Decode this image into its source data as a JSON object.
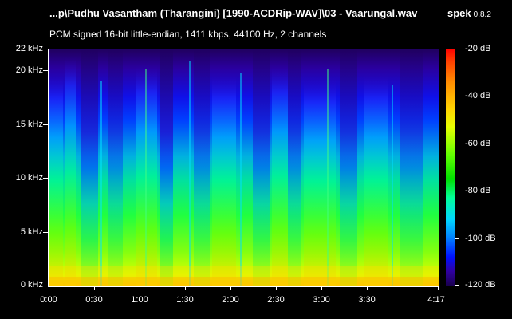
{
  "window": {
    "title": "...p\\Pudhu Vasantham (Tharangini) [1990-ACDRip-WAV]\\03 - Vaarungal.wav",
    "app_name": "spek",
    "app_version": "0.8.2",
    "format_info": "PCM signed 16-bit little-endian, 1411 kbps, 44100 Hz, 2 channels"
  },
  "frequency_axis": {
    "labels": [
      "22 kHz",
      "20 kHz",
      "15 kHz",
      "10 kHz",
      "5 kHz",
      "0 kHz"
    ]
  },
  "time_axis": {
    "labels": [
      "0:00",
      "0:30",
      "1:00",
      "1:30",
      "2:00",
      "2:30",
      "3:00",
      "3:30",
      "4:17"
    ]
  },
  "color_scale": {
    "labels": [
      "-20 dB",
      "-40 dB",
      "-60 dB",
      "-80 dB",
      "-100 dB",
      "-120 dB"
    ]
  },
  "colors": {
    "background": "#000000",
    "text": "#ffffff"
  }
}
